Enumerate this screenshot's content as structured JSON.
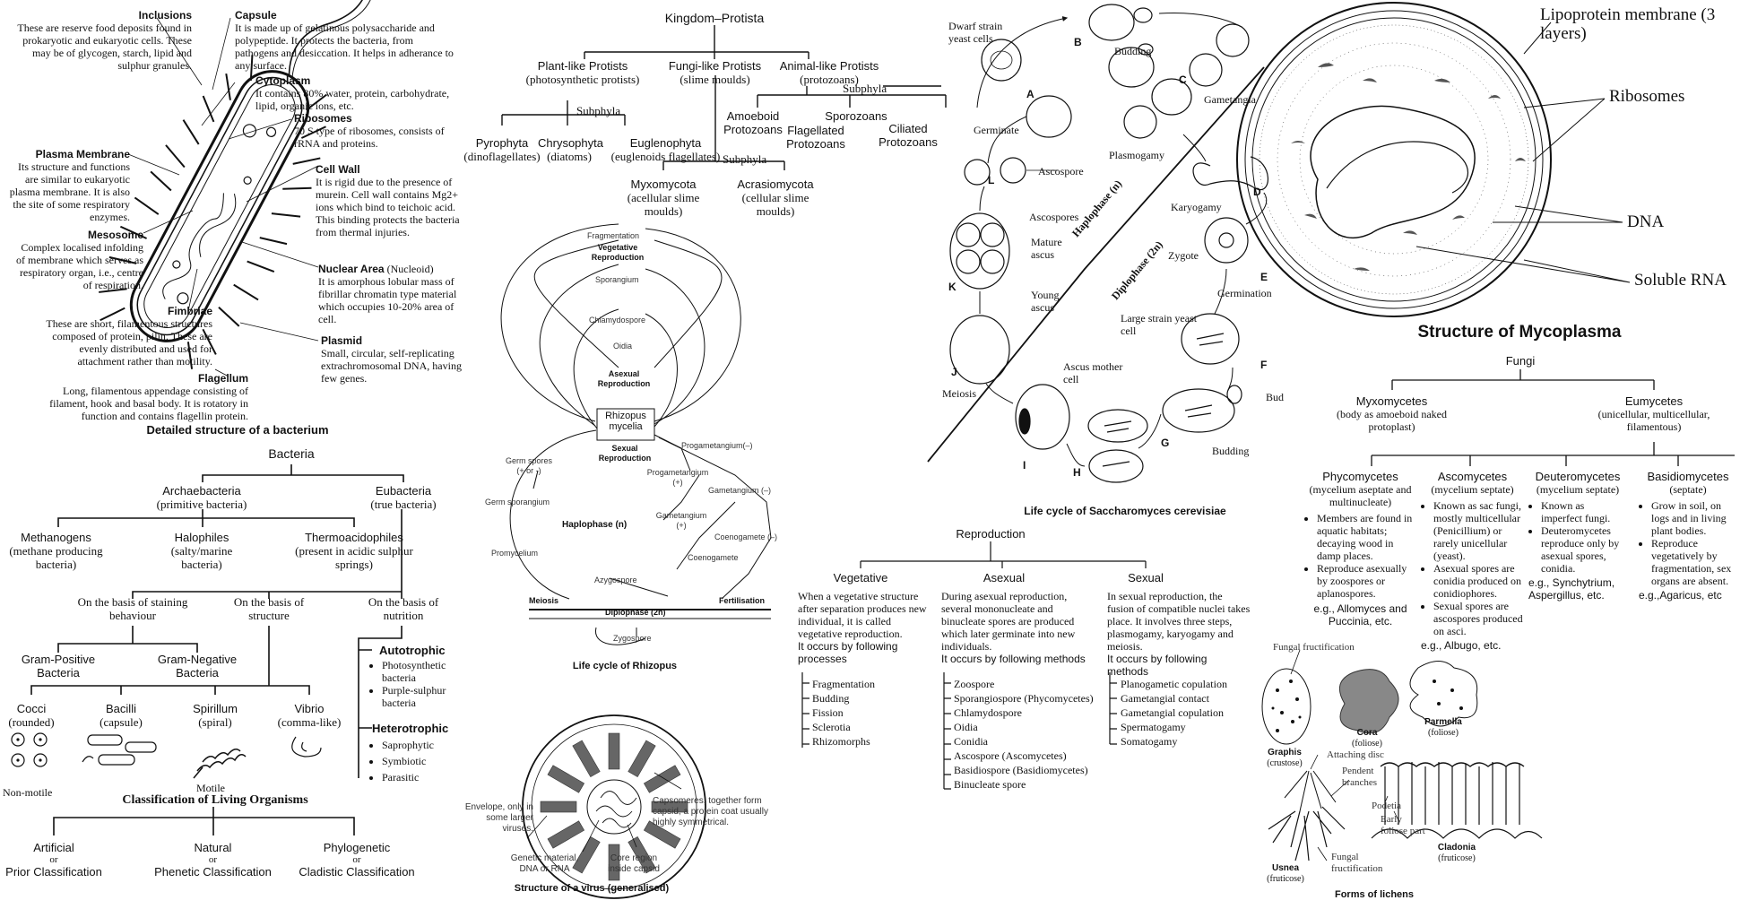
{
  "bacterium": {
    "caption": "Detailed structure of a bacterium",
    "inclusions": {
      "title": "Inclusions",
      "text": "These are reserve food deposits found in prokaryotic and eukaryotic cells. These may be of glycogen, starch, lipid and sulphur granules."
    },
    "capsule": {
      "title": "Capsule",
      "text": "It is made up of gelatinous polysaccharide and polypeptide. It protects the bacteria, from pathogens and desiccation. It helps in adherance to any surface."
    },
    "cytoplasm": {
      "title": "Cytoplasm",
      "text": "It contains 80% water, protein, carbohydrate, lipid, organic ions, etc."
    },
    "ribosomes": {
      "title": "Ribosomes",
      "text": "70 S type of ribosomes, consists of rRNA and proteins."
    },
    "plasma_membrane": {
      "title": "Plasma Membrane",
      "text": "Its structure and functions are similar to eukaryotic plasma membrane. It is also the site of some respiratory enzymes."
    },
    "cell_wall": {
      "title": "Cell Wall",
      "text": "It is rigid due to the presence of murein. Cell wall contains Mg2+ ions which bind to teichoic acid. This binding protects the bacteria from thermal injuries."
    },
    "mesosome": {
      "title": "Mesosome",
      "text": "Complex localised infolding of membrane which serves as respiratory organ, i.e., centre of respiration."
    },
    "nuclear_area": {
      "title": "Nuclear Area",
      "sub": "(Nucleoid)",
      "text": "It is amorphous lobular mass of fibrillar chromatin type material which occupies 10-20% area of cell."
    },
    "fimbriae": {
      "title": "Fimbriae",
      "text": "These are short, filamentous structures composed of protein, pilin. These are evenly distributed and used for attachment rather than motility."
    },
    "plasmid": {
      "title": "Plasmid",
      "text": "Small, circular, self-replicating extrachromosomal DNA, having few genes."
    },
    "flagellum": {
      "title": "Flagellum",
      "text": "Long, filamentous appendage consisting of filament, hook and basal body. It is rotatory in function and contains flagellin protein."
    }
  },
  "bacteria_tree": {
    "root": "Bacteria",
    "archae": {
      "name": "Archaebacteria",
      "sub": "(primitive bacteria)"
    },
    "eu": {
      "name": "Eubacteria",
      "sub": "(true bacteria)"
    },
    "methanogens": {
      "name": "Methanogens",
      "sub": "(methane producing bacteria)"
    },
    "halophiles": {
      "name": "Halophiles",
      "sub": "(salty/marine bacteria)"
    },
    "thermo": {
      "name": "Thermoacidophiles",
      "sub": "(present in acidic sulphur springs)"
    },
    "basis_stain": "On the basis of staining behaviour",
    "basis_struct": "On the basis of structure",
    "basis_nutri": "On the basis of nutrition",
    "gram_pos": "Gram-Positive Bacteria",
    "gram_neg": "Gram-Negative Bacteria",
    "cocci": {
      "name": "Cocci",
      "sub": "(rounded)"
    },
    "bacilli": {
      "name": "Bacilli",
      "sub": "(capsule)"
    },
    "spirillum": {
      "name": "Spirillum",
      "sub": "(spiral)"
    },
    "vibrio": {
      "name": "Vibrio",
      "sub": "(comma-like)"
    },
    "non_motile": "Non-motile",
    "motile": "Motile",
    "autotrophic": "Autotrophic",
    "auto_items": [
      "Photosynthetic bacteria",
      "Purple-sulphur bacteria"
    ],
    "heterotrophic": "Heterotrophic",
    "hetero_items": [
      "Saprophytic",
      "Symbiotic",
      "Parasitic"
    ]
  },
  "classification": {
    "title": "Classification of Living Organisms",
    "items": [
      {
        "name": "Artificial",
        "or": "or",
        "alt": "Prior Classification"
      },
      {
        "name": "Natural",
        "or": "or",
        "alt": "Phenetic Classification"
      },
      {
        "name": "Phylogenetic",
        "or": "or",
        "alt": "Cladistic Classification"
      }
    ]
  },
  "protista": {
    "root": "Kingdom–Protista",
    "plant": {
      "name": "Plant-like Protists",
      "sub": "(photosynthetic protists)"
    },
    "fungi": {
      "name": "Fungi-like Protists",
      "sub": "(slime moulds)"
    },
    "animal": {
      "name": "Animal-like Protists",
      "sub": "(protozoans)"
    },
    "subphyla": "Subphyla",
    "pyrophyta": {
      "name": "Pyrophyta",
      "sub": "(dinoflagellates)"
    },
    "chrysophyta": {
      "name": "Chrysophyta",
      "sub": "(diatoms)"
    },
    "euglenophyta": {
      "name": "Euglenophyta",
      "sub": "(euglenoids flagellates)"
    },
    "myxomycota": {
      "name": "Myxomycota",
      "sub": "(acellular slime moulds)"
    },
    "acrasiomycota": {
      "name": "Acrasiomycota",
      "sub": "(cellular slime moulds)"
    },
    "amoeboid": "Amoeboid Protozoans",
    "flagellated": "Flagellated Protozoans",
    "sporozoans": "Sporozoans",
    "ciliated": "Ciliated Protozoans"
  },
  "rhizopus": {
    "caption": "Life cycle of Rhizopus",
    "labels": {
      "fragmentation": "Fragmentation",
      "vegetative": "Vegetative Reproduction",
      "sporangium": "Sporangium",
      "chlamydospore": "Chlamydospore",
      "oidia": "Oidia",
      "asexual": "Asexual Reproduction",
      "mycelia": "Rhizopus mycelia",
      "sexual": "Sexual Reproduction",
      "germ_spores": "Germ spores (+ or -)",
      "germ_sporangium": "Germ sporangium",
      "promycelium": "Promycelium",
      "azygospore": "Azygospore",
      "haplophase": "Haplophase (n)",
      "progam_neg": "Progametangium(–)",
      "progam_pos": "Progametangium (+)",
      "gam_neg": "Gametangium (–)",
      "gam_pos": "Gametangium (+)",
      "coeno_neg": "Coenogamete (–)",
      "coenogamete": "Coenogamete",
      "meiosis": "Meiosis",
      "fertilisation": "Fertilisation",
      "diplophase": "Diplophase (2n)",
      "zygospore": "Zygospore"
    }
  },
  "virus": {
    "caption": "Structure of a virus (generalised)",
    "envelope": "Envelope, only in some larger viruses.",
    "genetic": "Genetic material, DNA or RNA",
    "core": "Core region inside capsid",
    "capsomeres": "Capsomeres, together form capsid, a protein coat usually highly symmetrical."
  },
  "yeast": {
    "caption": "Life cycle of Saccharomyces cerevisiae",
    "dwarf": "Dwarf strain yeast cells",
    "budding": "Budding",
    "gametangia": "Gametangia",
    "germinate": "Germinate",
    "ascospore": "Ascospore",
    "plasmogamy": "Plasmogamy",
    "karyogamy": "Karyogamy",
    "ascospores": "Ascospores",
    "mature_ascus": "Mature ascus",
    "haplophase": "Haplophase (n)",
    "diplophase": "Diplophase (2n)",
    "zygote": "Zygote",
    "germination": "Germination",
    "young_ascus": "Young ascus",
    "large_strain": "Large strain yeast cell",
    "ascus_mother": "Ascus mother cell",
    "meiosis": "Meiosis",
    "bud": "Bud",
    "budding2": "Budding",
    "letters": [
      "A",
      "B",
      "C",
      "D",
      "E",
      "F",
      "G",
      "H",
      "I",
      "J",
      "K",
      "L"
    ]
  },
  "reproduction": {
    "title": "Reproduction",
    "vegetative": {
      "name": "Vegetative",
      "text": "When a vegetative structure after separation produces new individual, it is called vegetative reproduction.",
      "bold": "It occurs by following processes",
      "items": [
        "Fragmentation",
        "Budding",
        "Fission",
        "Sclerotia",
        "Rhizomorphs"
      ]
    },
    "asexual": {
      "name": "Asexual",
      "text": "During asexual reproduction, several mononucleate and binucleate spores are produced which later germinate into new individuals.",
      "bold": "It occurs by following methods",
      "items": [
        "Zoospore",
        "Sporangiospore (Phycomycetes)",
        "Chlamydospore",
        "Oidia",
        "Conidia",
        "Ascospore (Ascomycetes)",
        "Basidiospore (Basidiomycetes)",
        "Binucleate spore"
      ]
    },
    "sexual": {
      "name": "Sexual",
      "text": "In sexual reproduction, the fusion of compatible nuclei takes place. It involves three steps, plasmogamy, karyogamy and meiosis.",
      "bold": "It occurs by following methods",
      "items": [
        "Planogametic copulation",
        "Gametangial contact",
        "Gametangial copulation",
        "Spermatogamy",
        "Somatogamy"
      ]
    }
  },
  "mycoplasma": {
    "caption": "Structure of Mycoplasma",
    "lipoprotein": "Lipoprotein membrane (3 layers)",
    "ribosomes": "Ribosomes",
    "dna": "DNA",
    "soluble_rna": "Soluble RNA"
  },
  "fungi": {
    "root": "Fungi",
    "myxo": {
      "name": "Myxomycetes",
      "sub": "(body as amoeboid naked protoplast)"
    },
    "eu": {
      "name": "Eumycetes",
      "sub": "(unicellular, multicellular, filamentous)"
    },
    "phyco": {
      "name": "Phycomycetes",
      "sub": "(mycelium aseptate and multinucleate)",
      "items": [
        "Members are found in aquatic habitats; decaying wood in damp places.",
        "Reproduce asexually by zoospores or aplanospores."
      ],
      "eg": "e.g., Allomyces and Puccinia, etc."
    },
    "asco": {
      "name": "Ascomycetes",
      "sub": "(mycelium septate)",
      "items": [
        "Known as sac fungi, mostly multicellular (Penicillium) or rarely unicellular (yeast).",
        "Asexual spores are conidia produced on conidiophores.",
        "Sexual spores are ascospores produced on asci."
      ],
      "eg": "e.g., Albugo, etc."
    },
    "deutero": {
      "name": "Deuteromycetes",
      "sub": "(mycelium septate)",
      "items": [
        "Known as imperfect fungi.",
        "Deuteromycetes reproduce only by asexual spores, conidia."
      ],
      "eg": "e.g., Synchytrium, Aspergillus, etc."
    },
    "basidio": {
      "name": "Basidiomycetes",
      "sub": "(septate)",
      "items": [
        "Grow in soil, on logs and in living plant bodies.",
        "Reproduce vegetatively by fragmentation, sex organs are absent."
      ],
      "eg": "e.g.,Agaricus, etc"
    }
  },
  "lichens": {
    "caption": "Forms of lichens",
    "fungal_fruct": "Fungal fructification",
    "graphis": "Graphis",
    "graphis_sub": "(crustose)",
    "cora": "Cora",
    "cora_sub": "(foliose)",
    "parmella": "Parmella",
    "parmella_sub": "(foliose)",
    "attaching": "Attaching disc",
    "pendent": "Pendent branches",
    "podetia": "Podetia",
    "early": "Early foliose part",
    "fungal_fruct2": "Fungal fructification",
    "usnea": "Usnea",
    "usnea_sub": "(fruticose)",
    "cladonia": "Cladonia",
    "cladonia_sub": "(fruticose)"
  }
}
